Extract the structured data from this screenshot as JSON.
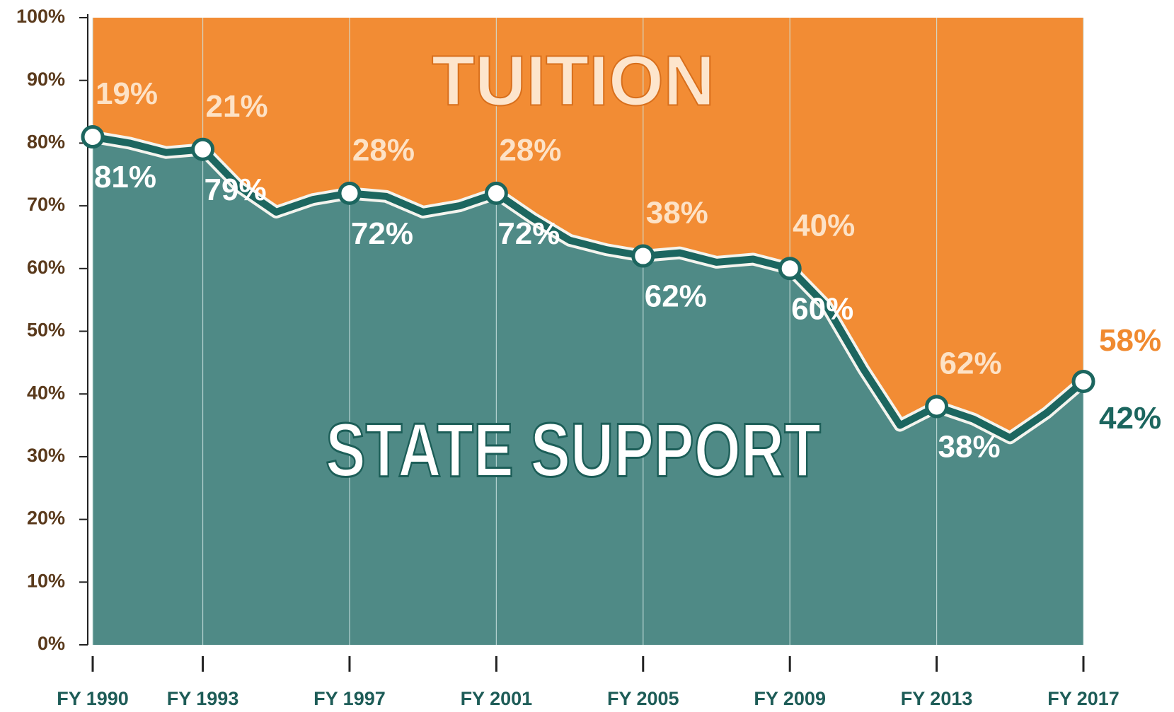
{
  "chart_data": {
    "type": "stacked-area",
    "x": [
      1990,
      1991,
      1992,
      1993,
      1994,
      1995,
      1996,
      1997,
      1998,
      1999,
      2000,
      2001,
      2002,
      2003,
      2004,
      2005,
      2006,
      2007,
      2008,
      2009,
      2010,
      2011,
      2012,
      2013,
      2014,
      2015,
      2016,
      2017
    ],
    "xlim": [
      1990,
      2017
    ],
    "xticks": [
      {
        "value": 1990,
        "label": "FY 1990"
      },
      {
        "value": 1993,
        "label": "FY 1993"
      },
      {
        "value": 1997,
        "label": "FY 1997"
      },
      {
        "value": 2001,
        "label": "FY 2001"
      },
      {
        "value": 2005,
        "label": "FY 2005"
      },
      {
        "value": 2009,
        "label": "FY 2009"
      },
      {
        "value": 2013,
        "label": "FY 2013"
      },
      {
        "value": 2017,
        "label": "FY 2017"
      }
    ],
    "ylim": [
      0,
      100
    ],
    "yticks": [
      {
        "value": 0,
        "label": "0%"
      },
      {
        "value": 10,
        "label": "10%"
      },
      {
        "value": 20,
        "label": "20%"
      },
      {
        "value": 30,
        "label": "30%"
      },
      {
        "value": 40,
        "label": "40%"
      },
      {
        "value": 50,
        "label": "50%"
      },
      {
        "value": 60,
        "label": "60%"
      },
      {
        "value": 70,
        "label": "70%"
      },
      {
        "value": 80,
        "label": "80%"
      },
      {
        "value": 90,
        "label": "90%"
      },
      {
        "value": 100,
        "label": "100%"
      }
    ],
    "grid": true,
    "series": [
      {
        "name": "STATE SUPPORT",
        "color": "#4f8a86",
        "values": [
          81,
          80,
          78.5,
          79,
          73,
          69,
          71,
          72,
          71.5,
          69,
          70,
          72,
          68,
          64.5,
          63,
          62,
          62.5,
          61,
          61.5,
          60,
          54,
          44,
          35,
          38,
          36,
          33,
          37,
          42
        ],
        "value_labels": [
          "81%",
          null,
          null,
          "79%",
          null,
          null,
          null,
          "72%",
          null,
          null,
          null,
          "72%",
          null,
          null,
          null,
          "62%",
          null,
          null,
          null,
          "60%",
          null,
          null,
          null,
          "38%",
          null,
          null,
          null,
          "42%"
        ]
      },
      {
        "name": "TUITION",
        "color": "#f28c34",
        "values": [
          19,
          20,
          21.5,
          21,
          27,
          31,
          29,
          28,
          28.5,
          31,
          30,
          28,
          32,
          35.5,
          37,
          38,
          37.5,
          39,
          38.5,
          40,
          46,
          56,
          65,
          62,
          64,
          67,
          63,
          58
        ],
        "value_labels": [
          "19%",
          null,
          null,
          "21%",
          null,
          null,
          null,
          "28%",
          null,
          null,
          null,
          "28%",
          null,
          null,
          null,
          "38%",
          null,
          null,
          null,
          "40%",
          null,
          null,
          null,
          "62%",
          null,
          null,
          null,
          "58%"
        ]
      }
    ]
  }
}
